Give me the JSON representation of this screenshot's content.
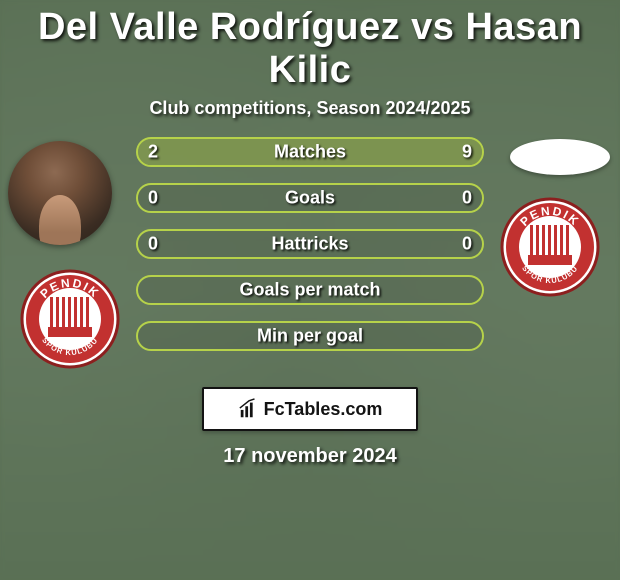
{
  "title": "Del Valle Rodríguez vs Hasan Kilic",
  "subtitle": "Club competitions, Season 2024/2025",
  "date": "17 november 2024",
  "branding": {
    "site": "FcTables.com"
  },
  "colors": {
    "bar_border": "#b6d24a",
    "fill": "#b6d24a",
    "fill_opacity": 0.38
  },
  "club_crest": {
    "top_text": "PENDIK",
    "bottom_text": "SPOR KULÜBÜ",
    "primary": "#c23130",
    "white": "#ffffff",
    "outline": "#8c1f1e"
  },
  "stats": [
    {
      "label": "Matches",
      "left_value": "2",
      "right_value": "9",
      "left_fill_pct": 18,
      "right_fill_pct": 82
    },
    {
      "label": "Goals",
      "left_value": "0",
      "right_value": "0",
      "left_fill_pct": 0,
      "right_fill_pct": 0
    },
    {
      "label": "Hattricks",
      "left_value": "0",
      "right_value": "0",
      "left_fill_pct": 0,
      "right_fill_pct": 0
    },
    {
      "label": "Goals per match",
      "left_value": "",
      "right_value": "",
      "left_fill_pct": 0,
      "right_fill_pct": 0
    },
    {
      "label": "Min per goal",
      "left_value": "",
      "right_value": "",
      "left_fill_pct": 0,
      "right_fill_pct": 0
    }
  ]
}
